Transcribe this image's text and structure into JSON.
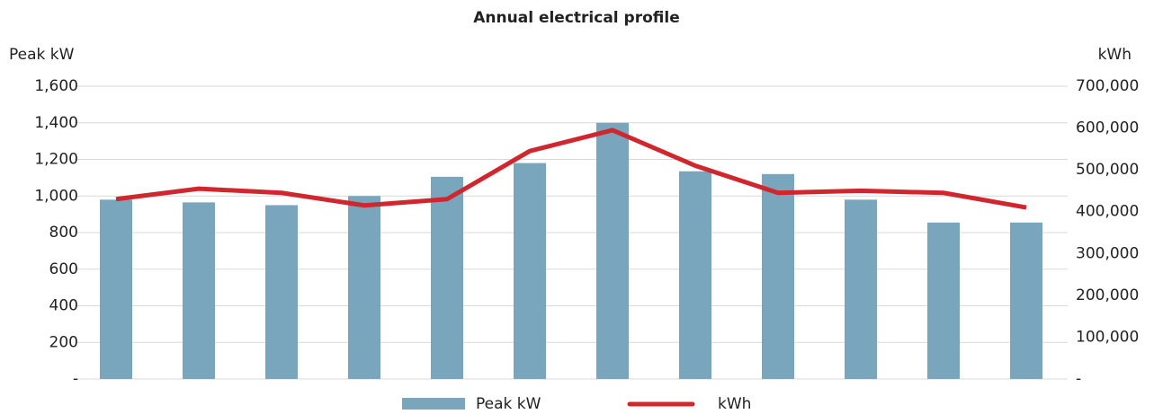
{
  "chart_data": {
    "type": "bar-line",
    "title": "Annual electrical profile",
    "y_label": "Peak kW",
    "y2_label": "kWh",
    "categories": [
      null,
      null,
      null,
      null,
      null,
      null,
      null,
      null,
      null,
      null,
      null,
      null
    ],
    "series": [
      {
        "name": "Peak kW",
        "type": "bar",
        "color": "#79a6bc",
        "values": [
          980,
          965,
          950,
          1000,
          1105,
          1180,
          1400,
          1135,
          1120,
          980,
          855,
          855
        ]
      },
      {
        "name": "kWh",
        "type": "line",
        "axis": "y2",
        "color": "#d0262e",
        "values": [
          430000,
          455000,
          445000,
          415000,
          430000,
          545000,
          595000,
          510000,
          445000,
          450000,
          445000,
          410000
        ]
      }
    ],
    "ylim": [
      0,
      1600
    ],
    "yticks": [
      {
        "value": 0,
        "label": "-"
      },
      200,
      400,
      600,
      800,
      {
        "value": 1000,
        "label": "1,000"
      },
      {
        "value": 1200,
        "label": "1,200"
      },
      {
        "value": 1400,
        "label": "1,400"
      },
      {
        "value": 1600,
        "label": "1,600"
      }
    ],
    "y2lim": [
      0,
      700000
    ],
    "y2ticks": [
      {
        "value": 0,
        "label": "-"
      },
      {
        "value": 100000,
        "label": "100,000"
      },
      {
        "value": 200000,
        "label": "200,000"
      },
      {
        "value": 300000,
        "label": "300,000"
      },
      {
        "value": 400000,
        "label": "400,000"
      },
      {
        "value": 500000,
        "label": "500,000"
      },
      {
        "value": 600000,
        "label": "600,000"
      },
      {
        "value": 700000,
        "label": "700,000"
      }
    ],
    "grid": true,
    "legend": "bottom"
  }
}
